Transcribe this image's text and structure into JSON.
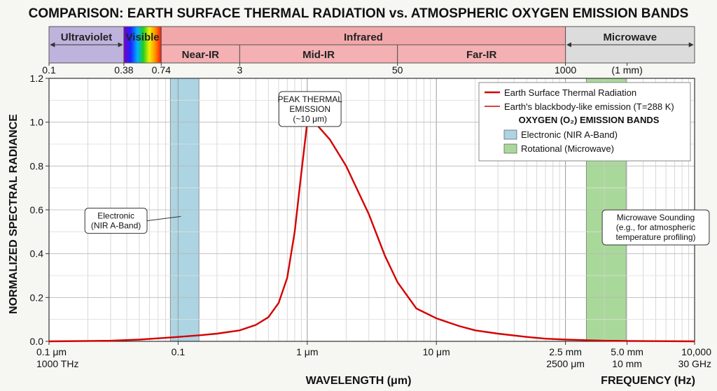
{
  "chart_data": {
    "type": "line",
    "title": "COMPARISON: EARTH SURFACE THERMAL RADIATION vs. ATMOSPHERIC OXYGEN EMISSION BANDS",
    "xlabel": "WAVELENGTH (μm)",
    "xlabel_right": "FREQUENCY (Hz)",
    "ylabel": "NORMALIZED SPECTRAL RADIANCE",
    "x_scale": "log",
    "xlim": [
      0.1,
      10000
    ],
    "ylim": [
      0,
      1.2
    ],
    "grid": true,
    "y_ticks": [
      "0.0",
      "0.2",
      "0.4",
      "0.6",
      "0.8",
      "1.0",
      "1.2"
    ],
    "x_ticks_bottom": [
      {
        "x": 0.1,
        "line1": "0.1 μm",
        "line2": "1000 THz"
      },
      {
        "x": 1,
        "line1": "0.1",
        "line2": ""
      },
      {
        "x": 10,
        "line1": "1 μm",
        "line2": ""
      },
      {
        "x": 100,
        "line1": "10 μm",
        "line2": ""
      },
      {
        "x": 1000,
        "line1": "2.5 mm",
        "line2": "2500 μm"
      },
      {
        "x": 3000,
        "line1": "5.0 mm",
        "line2": "10 mm"
      },
      {
        "x": 10000,
        "line1": "10,000",
        "line2": "30 GHz"
      }
    ],
    "x_ticks_top": [
      {
        "x": 0.1,
        "label": "0.1"
      },
      {
        "x": 0.38,
        "label": "0.38"
      },
      {
        "x": 0.74,
        "label": "0.74"
      },
      {
        "x": 3,
        "label": "3"
      },
      {
        "x": 50,
        "label": "50"
      },
      {
        "x": 1000,
        "label": "1000"
      },
      {
        "x": 3000,
        "label": "(1 mm)"
      }
    ],
    "spectrum_bands": [
      {
        "name": "Ultraviolet",
        "from": 0.1,
        "to": 0.38,
        "color": "#bdb3dc"
      },
      {
        "name": "Visible",
        "from": 0.38,
        "to": 0.74,
        "color": "rainbow"
      },
      {
        "name": "Infrared",
        "from": 0.74,
        "to": 1000,
        "color": "#f2a8aa"
      },
      {
        "name": "Microwave",
        "from": 1000,
        "to": 10000,
        "color": "#dcdcdc"
      }
    ],
    "infrared_subbands": [
      {
        "name": "Near-IR",
        "from": 0.74,
        "to": 3
      },
      {
        "name": "Mid-IR",
        "from": 3,
        "to": 50
      },
      {
        "name": "Far-IR",
        "from": 50,
        "to": 1000
      }
    ],
    "series": [
      {
        "name": "Earth Surface Thermal Radiation",
        "color": "#d40000",
        "x": [
          0.1,
          0.3,
          0.5,
          0.75,
          1,
          1.5,
          2,
          3,
          4,
          5,
          6,
          7,
          8,
          9,
          10,
          12,
          15,
          20,
          30,
          40,
          50,
          70,
          100,
          150,
          200,
          300,
          500,
          700,
          1000,
          1500,
          2000,
          3000,
          5000,
          10000
        ],
        "y": [
          0.0,
          0.003,
          0.008,
          0.015,
          0.02,
          0.028,
          0.035,
          0.05,
          0.075,
          0.11,
          0.175,
          0.29,
          0.5,
          0.77,
          1.0,
          0.985,
          0.92,
          0.8,
          0.58,
          0.39,
          0.27,
          0.15,
          0.105,
          0.07,
          0.05,
          0.035,
          0.02,
          0.012,
          0.008,
          0.005,
          0.003,
          0.002,
          0.001,
          0.0
        ]
      }
    ],
    "shaded_bands": [
      {
        "name": "Electronic (NIR A-Band)",
        "from": 0.87,
        "to": 1.45,
        "color": "#acd4e3"
      },
      {
        "name": "Rotational (Microwave)",
        "from": 1450,
        "to": 2950,
        "color": "#a9d99a"
      }
    ],
    "legend": {
      "position": "top-right",
      "entries": [
        {
          "label": "Earth Surface Thermal Radiation",
          "kind": "line",
          "color": "#d40000",
          "bold": true
        },
        {
          "label": "Earth's blackbody-like emission (T=288 K)",
          "kind": "line",
          "color": "#d40000",
          "bold": false
        }
      ],
      "section_title": "OXYGEN (O₂) EMISSION BANDS",
      "section_entries": [
        {
          "label": "Electronic (NIR A-Band)",
          "kind": "patch",
          "color": "#acd4e3"
        },
        {
          "label": "Rotational (Microwave)",
          "kind": "patch",
          "color": "#a9d99a"
        }
      ]
    },
    "annotations": [
      {
        "lines": [
          "PEAK THERMAL",
          "EMISSION",
          "(~10 μm)"
        ],
        "target_x": 10,
        "target_y": 1.0,
        "box_x": 10.5,
        "box_y": 1.06
      },
      {
        "lines": [
          "Electronic",
          "(NIR A-Band)"
        ],
        "target_x": 1.05,
        "target_y": 0.57,
        "box_x": 0.33,
        "box_y": 0.55
      },
      {
        "lines": [
          "Microwave Sounding",
          "(e.g., for atmospheric",
          "temperature profiling)"
        ],
        "target_x": 2000,
        "target_y": 0.45,
        "box_x": 5000,
        "box_y": 0.52
      }
    ]
  }
}
